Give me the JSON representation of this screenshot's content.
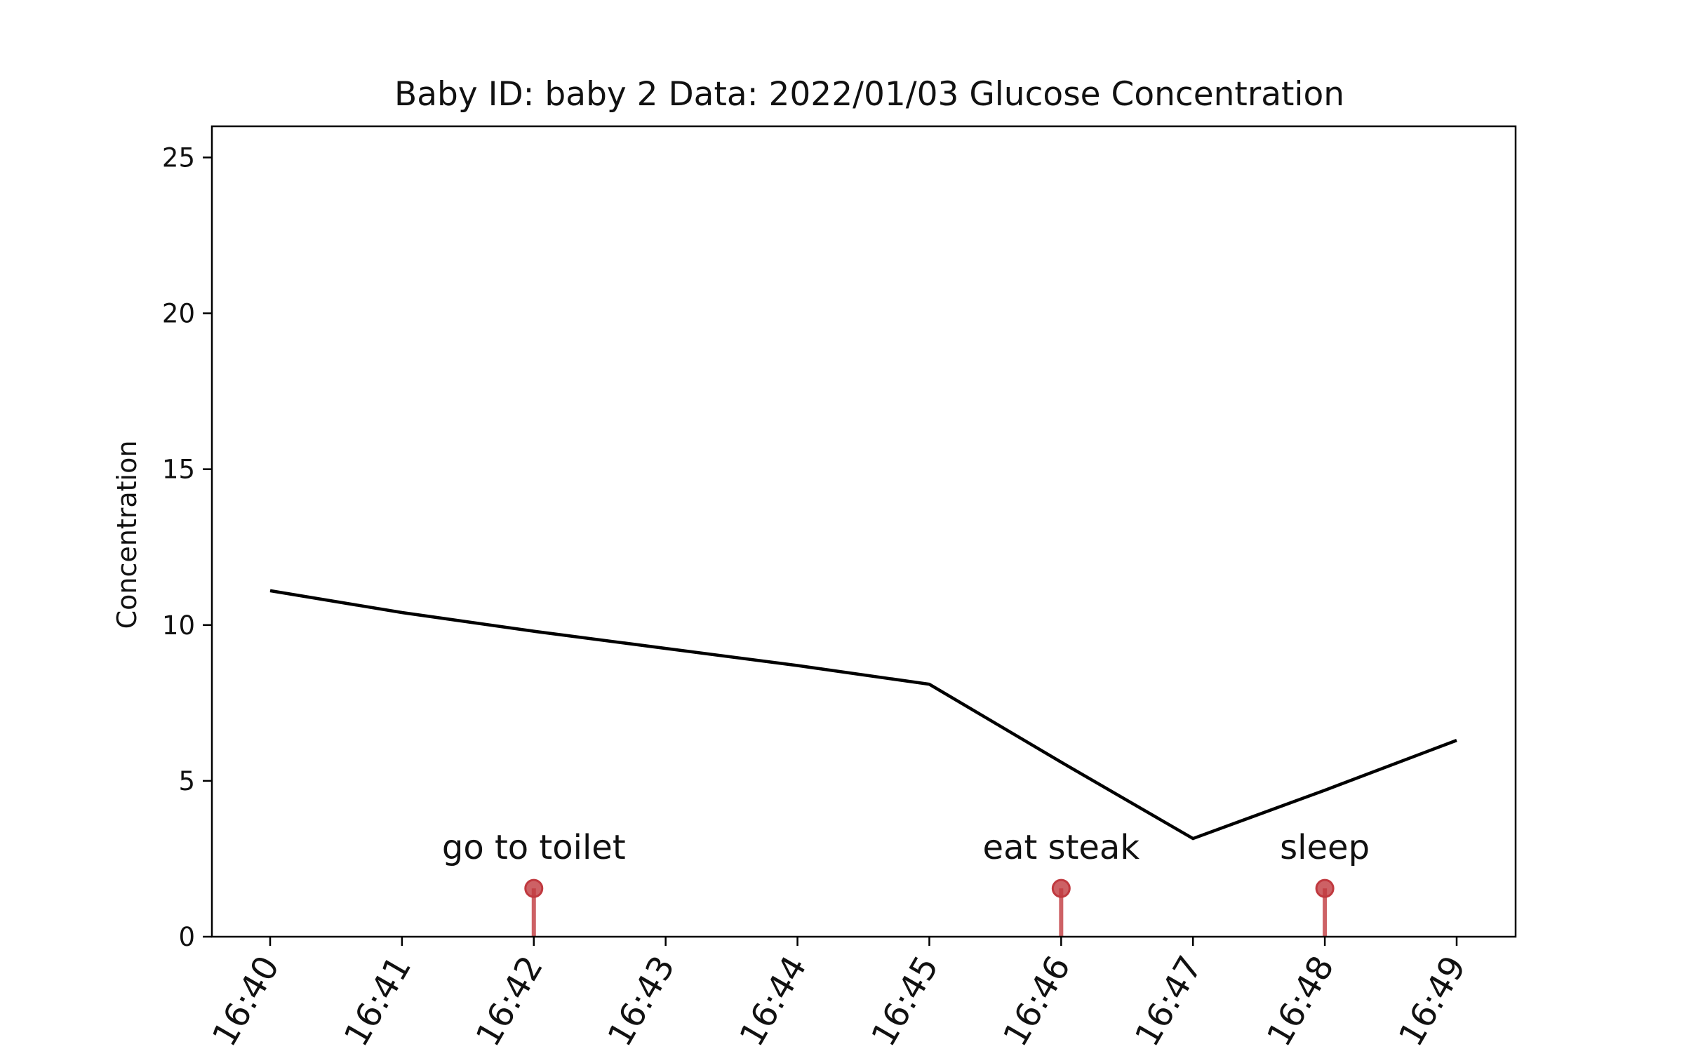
{
  "chart_data": {
    "type": "line",
    "title": "Baby ID: baby 2 Data: 2022/01/03 Glucose Concentration",
    "xlabel": "",
    "ylabel": "Concentration",
    "categories": [
      "16:40",
      "16:41",
      "16:42",
      "16:43",
      "16:44",
      "16:45",
      "16:46",
      "16:47",
      "16:48",
      "16:49"
    ],
    "series": [
      {
        "values": [
          11.1,
          10.4,
          9.8,
          9.25,
          8.7,
          8.1,
          5.6,
          3.15,
          4.7,
          6.3
        ],
        "color": "#000000"
      }
    ],
    "ylim": [
      0,
      26
    ],
    "yticks": [
      0,
      5,
      10,
      15,
      20,
      25
    ],
    "grid": false,
    "events": [
      {
        "x": "16:42",
        "y": 1.55,
        "label": "go to toilet"
      },
      {
        "x": "16:46",
        "y": 1.55,
        "label": "eat steak"
      },
      {
        "x": "16:48",
        "y": 1.55,
        "label": "sleep"
      }
    ],
    "event_color": "#c0393f"
  }
}
